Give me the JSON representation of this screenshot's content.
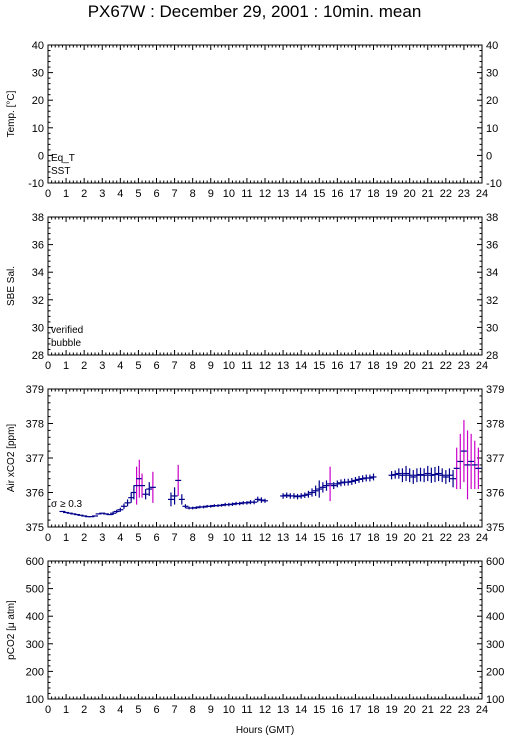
{
  "title": "PX67W : December 29, 2001 : 10min. mean",
  "xlabel": "Hours (GMT)",
  "colors": {
    "eq_t": "#cc0000",
    "sst": "#0000cc",
    "verified": "#0000aa",
    "bubble": "#cc00cc",
    "air": "#00008b",
    "sigma": "#cc00cc"
  },
  "panels": [
    {
      "ylabel": "Temp. [°C]",
      "yticks": [
        "-10",
        "0",
        "10",
        "20",
        "30",
        "40"
      ],
      "legend": [
        "Eq_T",
        "SST"
      ]
    },
    {
      "ylabel": "SBE Sal.",
      "yticks": [
        "28",
        "30",
        "32",
        "34",
        "36",
        "38"
      ],
      "legend": [
        "verified",
        "bubble"
      ]
    },
    {
      "ylabel": "Air xCO2 [ppm]",
      "yticks": [
        "375",
        "376",
        "377",
        "378",
        "379"
      ],
      "legend": [
        "σ ≥ 0.3"
      ]
    },
    {
      "ylabel": "pCO2 [μ atm]",
      "yticks": [
        "100",
        "200",
        "300",
        "400",
        "500",
        "600"
      ],
      "legend": []
    }
  ],
  "xticks": [
    "0",
    "1",
    "2",
    "3",
    "4",
    "5",
    "6",
    "7",
    "8",
    "9",
    "10",
    "11",
    "12",
    "13",
    "14",
    "15",
    "16",
    "17",
    "18",
    "19",
    "20",
    "21",
    "22",
    "23",
    "24"
  ],
  "chart_data": [
    {
      "type": "scatter",
      "title": "",
      "ylabel": "Temp. [°C]",
      "xlim": [
        0,
        24
      ],
      "ylim": [
        -10,
        40
      ],
      "series": []
    },
    {
      "type": "scatter",
      "title": "",
      "ylabel": "SBE Sal.",
      "xlim": [
        0,
        24
      ],
      "ylim": [
        28,
        38
      ],
      "series": []
    },
    {
      "type": "scatter",
      "title": "",
      "ylabel": "Air xCO2 [ppm]",
      "xlim": [
        0,
        24
      ],
      "ylim": [
        375,
        379
      ],
      "series": [
        {
          "name": "",
          "points": [
            {
              "x": 0.8,
              "y": 375.45,
              "err": 0.02
            },
            {
              "x": 1.0,
              "y": 375.42,
              "err": 0.02
            },
            {
              "x": 1.2,
              "y": 375.4,
              "err": 0.02
            },
            {
              "x": 1.4,
              "y": 375.38,
              "err": 0.02
            },
            {
              "x": 1.6,
              "y": 375.36,
              "err": 0.02
            },
            {
              "x": 1.8,
              "y": 375.34,
              "err": 0.02
            },
            {
              "x": 2.0,
              "y": 375.32,
              "err": 0.02
            },
            {
              "x": 2.2,
              "y": 375.3,
              "err": 0.02
            },
            {
              "x": 2.4,
              "y": 375.3,
              "err": 0.02
            },
            {
              "x": 2.6,
              "y": 375.32,
              "err": 0.02
            },
            {
              "x": 2.8,
              "y": 375.38,
              "err": 0.03
            },
            {
              "x": 3.0,
              "y": 375.4,
              "err": 0.03
            },
            {
              "x": 3.2,
              "y": 375.38,
              "err": 0.03
            },
            {
              "x": 3.4,
              "y": 375.36,
              "err": 0.03
            },
            {
              "x": 3.6,
              "y": 375.4,
              "err": 0.05
            },
            {
              "x": 3.8,
              "y": 375.45,
              "err": 0.05
            },
            {
              "x": 4.0,
              "y": 375.5,
              "err": 0.06
            },
            {
              "x": 4.2,
              "y": 375.6,
              "err": 0.08
            },
            {
              "x": 4.4,
              "y": 375.7,
              "err": 0.1
            },
            {
              "x": 4.6,
              "y": 375.85,
              "err": 0.15
            },
            {
              "x": 4.75,
              "y": 376.0,
              "err": 0.2
            },
            {
              "x": 4.9,
              "y": 376.2,
              "err": 0.55
            },
            {
              "x": 5.05,
              "y": 376.4,
              "err": 0.55
            },
            {
              "x": 5.2,
              "y": 376.2,
              "err": 0.35
            },
            {
              "x": 5.4,
              "y": 375.95,
              "err": 0.15
            },
            {
              "x": 5.6,
              "y": 376.1,
              "err": 0.2
            },
            {
              "x": 5.8,
              "y": 376.15,
              "err": 0.45
            },
            {
              "x": 6.8,
              "y": 375.8,
              "err": 0.2
            },
            {
              "x": 7.0,
              "y": 375.9,
              "err": 0.25
            },
            {
              "x": 7.2,
              "y": 376.35,
              "err": 0.45
            },
            {
              "x": 7.4,
              "y": 375.8,
              "err": 0.15
            },
            {
              "x": 7.6,
              "y": 375.6,
              "err": 0.06
            },
            {
              "x": 7.8,
              "y": 375.55,
              "err": 0.04
            },
            {
              "x": 8.0,
              "y": 375.55,
              "err": 0.04
            },
            {
              "x": 8.2,
              "y": 375.56,
              "err": 0.04
            },
            {
              "x": 8.4,
              "y": 375.58,
              "err": 0.04
            },
            {
              "x": 8.6,
              "y": 375.58,
              "err": 0.04
            },
            {
              "x": 8.8,
              "y": 375.6,
              "err": 0.04
            },
            {
              "x": 9.0,
              "y": 375.6,
              "err": 0.04
            },
            {
              "x": 9.2,
              "y": 375.62,
              "err": 0.04
            },
            {
              "x": 9.4,
              "y": 375.62,
              "err": 0.04
            },
            {
              "x": 9.6,
              "y": 375.63,
              "err": 0.04
            },
            {
              "x": 9.8,
              "y": 375.65,
              "err": 0.05
            },
            {
              "x": 10.0,
              "y": 375.65,
              "err": 0.05
            },
            {
              "x": 10.2,
              "y": 375.66,
              "err": 0.05
            },
            {
              "x": 10.4,
              "y": 375.68,
              "err": 0.05
            },
            {
              "x": 10.6,
              "y": 375.68,
              "err": 0.05
            },
            {
              "x": 10.8,
              "y": 375.7,
              "err": 0.05
            },
            {
              "x": 11.0,
              "y": 375.7,
              "err": 0.05
            },
            {
              "x": 11.2,
              "y": 375.72,
              "err": 0.06
            },
            {
              "x": 11.4,
              "y": 375.72,
              "err": 0.06
            },
            {
              "x": 11.6,
              "y": 375.8,
              "err": 0.08
            },
            {
              "x": 11.8,
              "y": 375.78,
              "err": 0.08
            },
            {
              "x": 12.0,
              "y": 375.76,
              "err": 0.06
            },
            {
              "x": 13.0,
              "y": 375.9,
              "err": 0.08
            },
            {
              "x": 13.2,
              "y": 375.92,
              "err": 0.08
            },
            {
              "x": 13.4,
              "y": 375.9,
              "err": 0.08
            },
            {
              "x": 13.6,
              "y": 375.9,
              "err": 0.08
            },
            {
              "x": 13.8,
              "y": 375.88,
              "err": 0.08
            },
            {
              "x": 14.0,
              "y": 375.9,
              "err": 0.08
            },
            {
              "x": 14.2,
              "y": 375.92,
              "err": 0.08
            },
            {
              "x": 14.4,
              "y": 375.95,
              "err": 0.1
            },
            {
              "x": 14.6,
              "y": 376.0,
              "err": 0.12
            },
            {
              "x": 14.8,
              "y": 376.05,
              "err": 0.15
            },
            {
              "x": 15.0,
              "y": 376.1,
              "err": 0.25
            },
            {
              "x": 15.2,
              "y": 376.15,
              "err": 0.15
            },
            {
              "x": 15.4,
              "y": 376.2,
              "err": 0.15
            },
            {
              "x": 15.6,
              "y": 376.25,
              "err": 0.5
            },
            {
              "x": 15.8,
              "y": 376.2,
              "err": 0.1
            },
            {
              "x": 16.0,
              "y": 376.25,
              "err": 0.1
            },
            {
              "x": 16.2,
              "y": 376.28,
              "err": 0.1
            },
            {
              "x": 16.4,
              "y": 376.3,
              "err": 0.1
            },
            {
              "x": 16.6,
              "y": 376.3,
              "err": 0.1
            },
            {
              "x": 16.8,
              "y": 376.32,
              "err": 0.1
            },
            {
              "x": 17.0,
              "y": 376.35,
              "err": 0.1
            },
            {
              "x": 17.2,
              "y": 376.38,
              "err": 0.1
            },
            {
              "x": 17.4,
              "y": 376.4,
              "err": 0.1
            },
            {
              "x": 17.6,
              "y": 376.42,
              "err": 0.1
            },
            {
              "x": 17.8,
              "y": 376.42,
              "err": 0.1
            },
            {
              "x": 18.0,
              "y": 376.45,
              "err": 0.1
            },
            {
              "x": 19.0,
              "y": 376.5,
              "err": 0.12
            },
            {
              "x": 19.2,
              "y": 376.52,
              "err": 0.12
            },
            {
              "x": 19.4,
              "y": 376.55,
              "err": 0.15
            },
            {
              "x": 19.6,
              "y": 376.5,
              "err": 0.2
            },
            {
              "x": 19.8,
              "y": 376.55,
              "err": 0.22
            },
            {
              "x": 20.0,
              "y": 376.5,
              "err": 0.2
            },
            {
              "x": 20.2,
              "y": 376.45,
              "err": 0.2
            },
            {
              "x": 20.4,
              "y": 376.5,
              "err": 0.2
            },
            {
              "x": 20.6,
              "y": 376.52,
              "err": 0.2
            },
            {
              "x": 20.8,
              "y": 376.5,
              "err": 0.2
            },
            {
              "x": 21.0,
              "y": 376.55,
              "err": 0.22
            },
            {
              "x": 21.2,
              "y": 376.5,
              "err": 0.22
            },
            {
              "x": 21.4,
              "y": 376.52,
              "err": 0.22
            },
            {
              "x": 21.6,
              "y": 376.55,
              "err": 0.22
            },
            {
              "x": 21.8,
              "y": 376.5,
              "err": 0.2
            },
            {
              "x": 22.0,
              "y": 376.45,
              "err": 0.2
            },
            {
              "x": 22.2,
              "y": 376.5,
              "err": 0.2
            },
            {
              "x": 22.4,
              "y": 376.4,
              "err": 0.25
            },
            {
              "x": 22.6,
              "y": 376.7,
              "err": 0.6
            },
            {
              "x": 22.8,
              "y": 376.9,
              "err": 0.8
            },
            {
              "x": 23.0,
              "y": 377.2,
              "err": 0.9
            },
            {
              "x": 23.2,
              "y": 376.8,
              "err": 1.0
            },
            {
              "x": 23.4,
              "y": 376.9,
              "err": 0.8
            },
            {
              "x": 23.6,
              "y": 376.8,
              "err": 0.7
            },
            {
              "x": 23.8,
              "y": 376.7,
              "err": 0.6
            }
          ]
        }
      ]
    },
    {
      "type": "scatter",
      "title": "",
      "ylabel": "pCO2 [μ atm]",
      "xlim": [
        0,
        24
      ],
      "ylim": [
        100,
        600
      ],
      "series": []
    }
  ]
}
